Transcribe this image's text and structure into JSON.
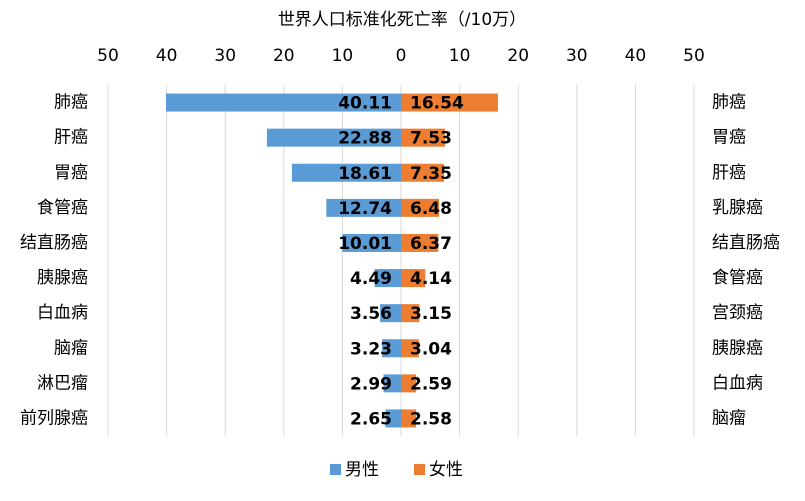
{
  "chart_data": {
    "type": "butterfly",
    "title": "世界人口标准化死亡率（/10万）",
    "left_categories": [
      "肺癌",
      "肝癌",
      "胃癌",
      "食管癌",
      "结直肠癌",
      "胰腺癌",
      "白血病",
      "脑瘤",
      "淋巴瘤",
      "前列腺癌"
    ],
    "right_categories": [
      "肺癌",
      "胃癌",
      "肝癌",
      "乳腺癌",
      "结直肠癌",
      "食管癌",
      "宫颈癌",
      "胰腺癌",
      "白血病",
      "脑瘤"
    ],
    "highlight_color": "#c00000",
    "series": [
      {
        "name": "男性",
        "color": "#5b9bd5",
        "side": "left",
        "values": [
          40.11,
          22.88,
          18.61,
          12.74,
          10.01,
          4.49,
          3.56,
          3.23,
          2.99,
          2.65
        ]
      },
      {
        "name": "女性",
        "color": "#ed7d31",
        "side": "right",
        "values": [
          16.54,
          7.53,
          7.35,
          6.48,
          6.37,
          4.14,
          3.15,
          3.04,
          2.59,
          2.58
        ]
      }
    ],
    "xlim": [
      -50,
      50
    ],
    "xticks": [
      {
        "value": -50,
        "label": "50"
      },
      {
        "value": -40,
        "label": "40"
      },
      {
        "value": -30,
        "label": "30"
      },
      {
        "value": -20,
        "label": "20"
      },
      {
        "value": -10,
        "label": "10"
      },
      0,
      10,
      20,
      30,
      40,
      50
    ],
    "grid": true
  }
}
